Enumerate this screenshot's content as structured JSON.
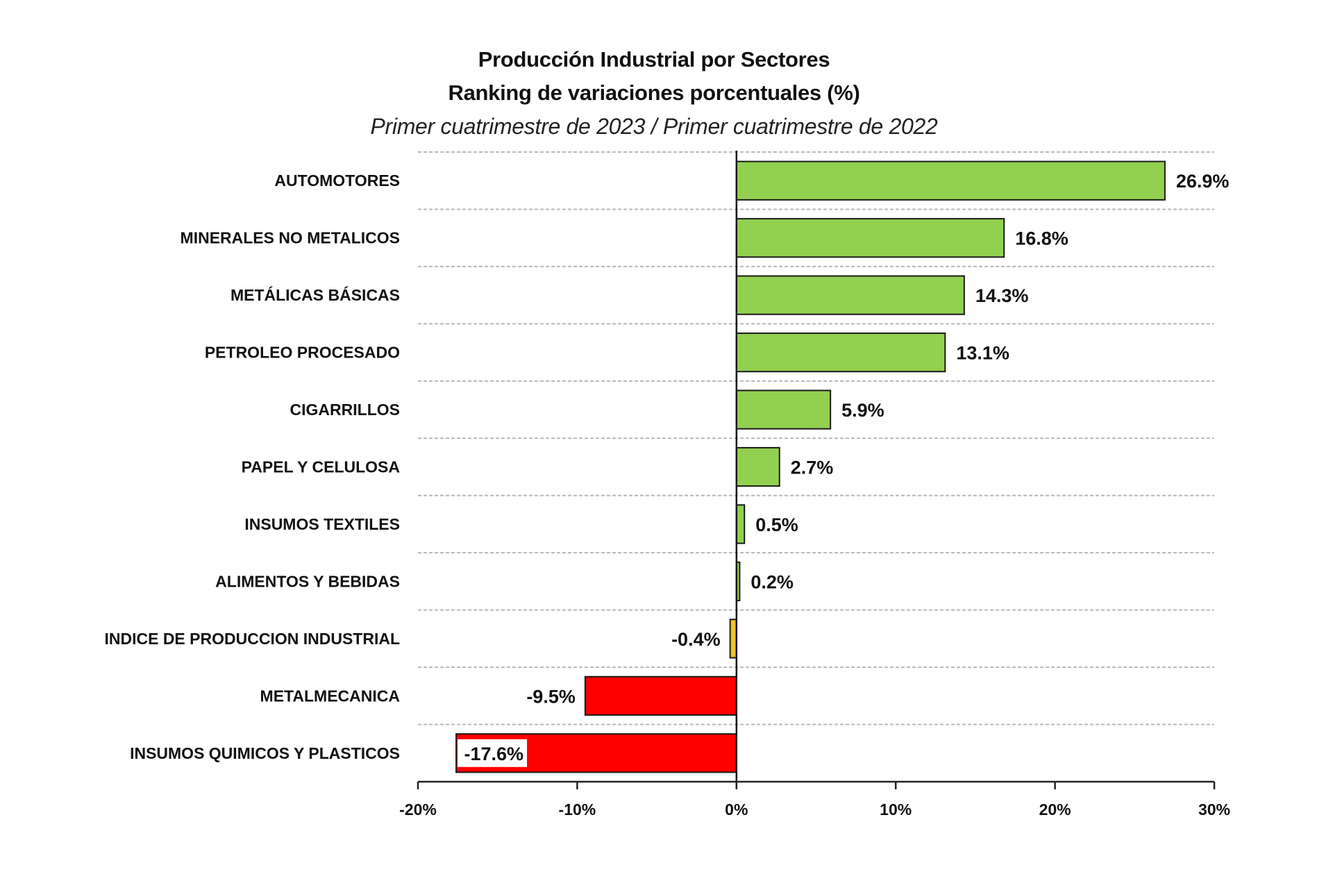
{
  "chart_data": {
    "type": "bar",
    "orientation": "horizontal",
    "title": "Producción Industrial por Sectores",
    "subtitle": "Ranking de variaciones porcentuales (%)",
    "subtitle2": "Primer cuatrimestre de 2023 / Primer cuatrimestre de 2022",
    "xlabel": "",
    "ylabel": "",
    "xlim": [
      -20,
      30
    ],
    "xticks": [
      -20,
      -10,
      0,
      10,
      20,
      30
    ],
    "xtick_labels": [
      "-20%",
      "-10%",
      "0%",
      "10%",
      "20%",
      "30%"
    ],
    "grid": "horizontal dashed between categories",
    "legend": "none",
    "categories": [
      "AUTOMOTORES",
      "MINERALES NO METALICOS",
      "METÁLICAS BÁSICAS",
      "PETROLEO PROCESADO",
      "CIGARRILLOS",
      "PAPEL Y CELULOSA",
      "INSUMOS TEXTILES",
      "ALIMENTOS Y BEBIDAS",
      "INDICE DE PRODUCCION INDUSTRIAL",
      "METALMECANICA",
      "INSUMOS QUIMICOS Y PLASTICOS"
    ],
    "values": [
      26.9,
      16.8,
      14.3,
      13.1,
      5.9,
      2.7,
      0.5,
      0.2,
      -0.4,
      -9.5,
      -17.6
    ],
    "value_labels": [
      "26.9%",
      "16.8%",
      "14.3%",
      "13.1%",
      "5.9%",
      "2.7%",
      "0.5%",
      "0.2%",
      "-0.4%",
      "-9.5%",
      "-17.6%"
    ],
    "bar_colors": [
      "#92d050",
      "#92d050",
      "#92d050",
      "#92d050",
      "#92d050",
      "#92d050",
      "#92d050",
      "#92d050",
      "#f5c02a",
      "#ff0000",
      "#ff0000"
    ],
    "colors": {
      "positive": "#92d050",
      "index": "#f5c02a",
      "negative": "#ff0000",
      "outline": "#1a1a1a",
      "grid": "#b8b8b8"
    }
  }
}
